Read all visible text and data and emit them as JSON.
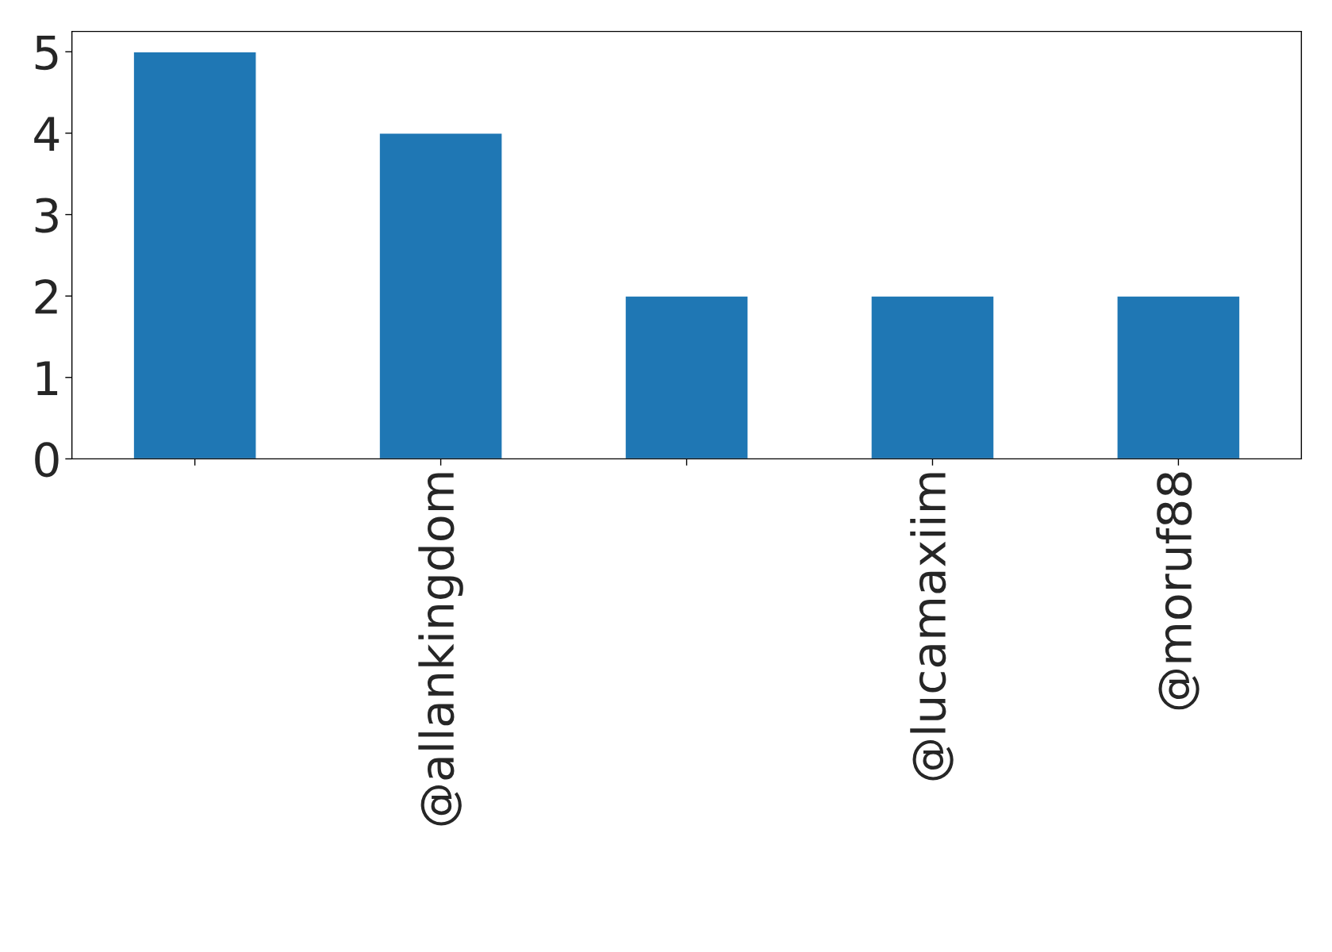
{
  "chart_data": {
    "type": "bar",
    "categories": [
      null,
      "@allankingdom",
      null,
      "@lucamaxiim",
      "@moruf88"
    ],
    "values": [
      5,
      4,
      2,
      2,
      2
    ],
    "color": "#1f77b4",
    "ylim": [
      0,
      5.25
    ],
    "yticks": [
      0,
      1,
      2,
      3,
      4,
      5
    ],
    "grid": false,
    "legend": false
  }
}
